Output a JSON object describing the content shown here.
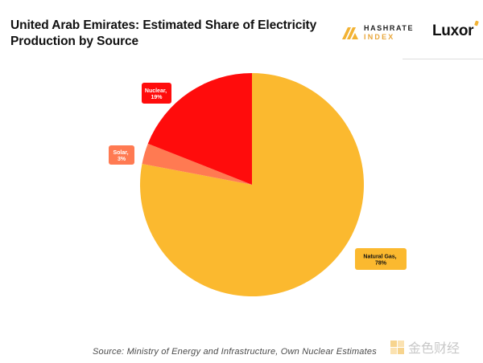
{
  "header": {
    "title": "United Arab Emirates: Estimated Share of Electricity Production by Source",
    "brand_hashrate_line1": "HASHRATE",
    "brand_hashrate_line2": "INDEX",
    "brand_luxor": "Luxor"
  },
  "source": "Source: Ministry of Energy and Infrastructure, Own Nuclear Estimates",
  "watermark": "金色财经",
  "colors": {
    "natural_gas": "#fbb92f",
    "nuclear": "#ff0c0c",
    "solar": "#ff7a52",
    "callout_bg_gas": "#fbb92f",
    "callout_bg_nuclear": "#ff0c0c",
    "callout_bg_solar": "#ff7a52"
  },
  "chart_data": {
    "type": "pie",
    "title": "United Arab Emirates: Estimated Share of Electricity Production by Source",
    "start_angle_deg": 0,
    "direction": "clockwise",
    "slices": [
      {
        "label": "Natural Gas",
        "value": 78,
        "display": "78%"
      },
      {
        "label": "Solar",
        "value": 3,
        "display": "3%"
      },
      {
        "label": "Nuclear",
        "value": 19,
        "display": "19%"
      }
    ]
  }
}
